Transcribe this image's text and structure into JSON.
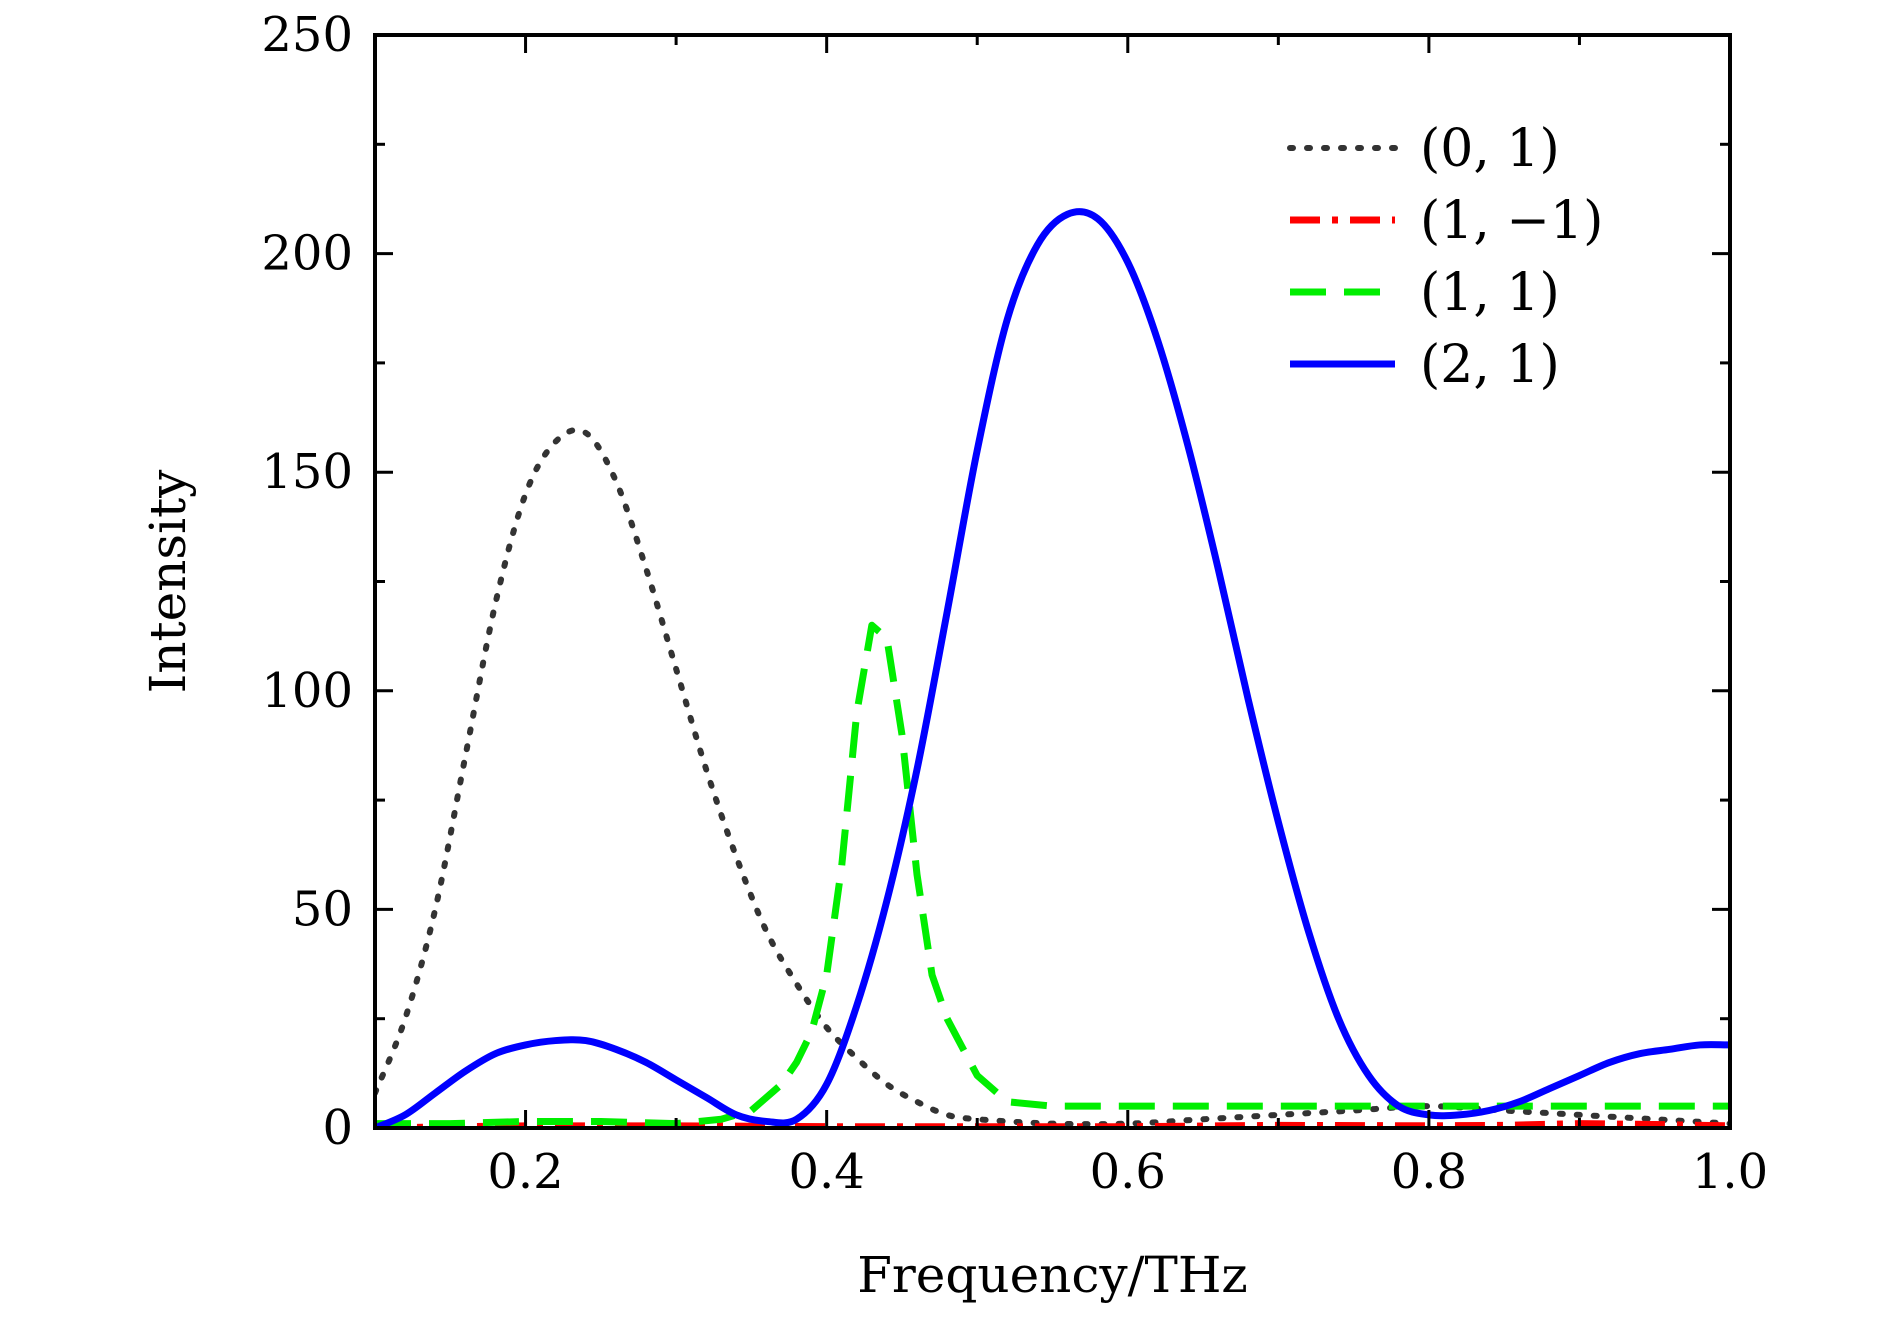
{
  "chart_data": {
    "type": "line",
    "title": "",
    "xlabel": "Frequency/THz",
    "ylabel": "Intensity",
    "xlim": [
      0.1,
      1.0
    ],
    "ylim": [
      0,
      250
    ],
    "xticks": [
      0.2,
      0.4,
      0.6,
      0.8,
      1.0
    ],
    "xtick_labels": [
      "0.2",
      "0.4",
      "0.6",
      "0.8",
      "1.0"
    ],
    "yticks": [
      0,
      50,
      100,
      150,
      200,
      250
    ],
    "ytick_labels": [
      "0",
      "50",
      "100",
      "150",
      "200",
      "250"
    ],
    "grid": false,
    "legend_position": "top-right",
    "series": [
      {
        "name": "(0, 1)",
        "color": "#333333",
        "style": "dotted",
        "x": [
          0.1,
          0.12,
          0.14,
          0.16,
          0.18,
          0.2,
          0.22,
          0.24,
          0.26,
          0.28,
          0.3,
          0.32,
          0.34,
          0.36,
          0.38,
          0.4,
          0.42,
          0.44,
          0.46,
          0.48,
          0.5,
          0.55,
          0.6,
          0.65,
          0.7,
          0.75,
          0.8,
          0.85,
          0.9,
          0.95,
          1.0
        ],
        "y": [
          8,
          25,
          50,
          85,
          120,
          145,
          157,
          159,
          148,
          128,
          105,
          82,
          62,
          45,
          33,
          23,
          16,
          10,
          6,
          3,
          2,
          1,
          1,
          2,
          3,
          4,
          5,
          4,
          3,
          2,
          1
        ]
      },
      {
        "name": "(1, −1)",
        "color": "#ff0000",
        "style": "dashdot",
        "x": [
          0.1,
          0.2,
          0.3,
          0.4,
          0.5,
          0.6,
          0.7,
          0.8,
          0.85,
          0.9,
          0.95,
          1.0
        ],
        "y": [
          0,
          0.5,
          0.5,
          0.3,
          0.3,
          0.3,
          0.6,
          0.5,
          0.6,
          1.0,
          0.8,
          0.5
        ]
      },
      {
        "name": "(1, 1)",
        "color": "#00ee00",
        "style": "dashed",
        "x": [
          0.1,
          0.15,
          0.2,
          0.25,
          0.3,
          0.33,
          0.35,
          0.37,
          0.38,
          0.39,
          0.4,
          0.41,
          0.42,
          0.43,
          0.44,
          0.45,
          0.46,
          0.47,
          0.48,
          0.5,
          0.52,
          0.55,
          0.6,
          0.7,
          0.8,
          0.9,
          1.0
        ],
        "y": [
          1,
          1,
          1.5,
          1.5,
          1,
          2,
          4,
          10,
          15,
          22,
          35,
          60,
          95,
          115,
          112,
          90,
          58,
          35,
          25,
          12,
          6,
          5,
          5,
          5,
          5,
          5,
          5
        ]
      },
      {
        "name": "(2, 1)",
        "color": "#0000ff",
        "style": "solid",
        "x": [
          0.1,
          0.12,
          0.14,
          0.16,
          0.18,
          0.2,
          0.22,
          0.24,
          0.26,
          0.28,
          0.3,
          0.32,
          0.34,
          0.36,
          0.38,
          0.4,
          0.42,
          0.44,
          0.46,
          0.48,
          0.5,
          0.52,
          0.54,
          0.56,
          0.58,
          0.6,
          0.62,
          0.64,
          0.66,
          0.68,
          0.7,
          0.72,
          0.74,
          0.76,
          0.78,
          0.8,
          0.82,
          0.84,
          0.86,
          0.88,
          0.9,
          0.92,
          0.94,
          0.96,
          0.98,
          1.0
        ],
        "y": [
          0,
          3,
          8,
          13,
          17,
          19,
          20,
          20,
          18,
          15,
          11,
          7,
          3,
          1.5,
          2,
          10,
          28,
          52,
          82,
          118,
          155,
          185,
          202,
          209,
          208,
          198,
          180,
          156,
          128,
          98,
          70,
          45,
          25,
          12,
          5,
          3,
          3,
          4,
          6,
          9,
          12,
          15,
          17,
          18,
          19,
          19
        ]
      }
    ]
  }
}
